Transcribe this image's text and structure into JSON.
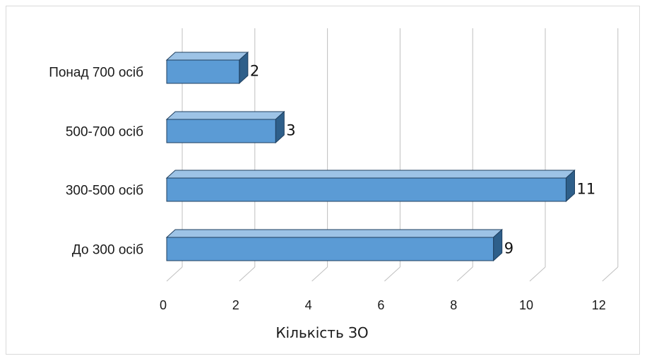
{
  "chart_data": {
    "type": "bar",
    "orientation": "horizontal",
    "style": "3d",
    "categories": [
      "До 300 осіб",
      "300-500 осіб",
      "500-700 осіб",
      "Понад 700 осіб"
    ],
    "values": [
      9,
      11,
      3,
      2
    ],
    "xlabel": "Кількість ЗО",
    "xlim": [
      0,
      12
    ],
    "xticks": [
      0,
      2,
      4,
      6,
      8,
      10,
      12
    ],
    "data_labels": true,
    "grid": true,
    "legend": "none",
    "colors": {
      "bar_face": "#5b9bd5",
      "bar_top": "#9dc3e6",
      "bar_side": "#2e5f8a",
      "bar_edge": "#1f3f5f",
      "grid": "#bfbfbf"
    }
  }
}
